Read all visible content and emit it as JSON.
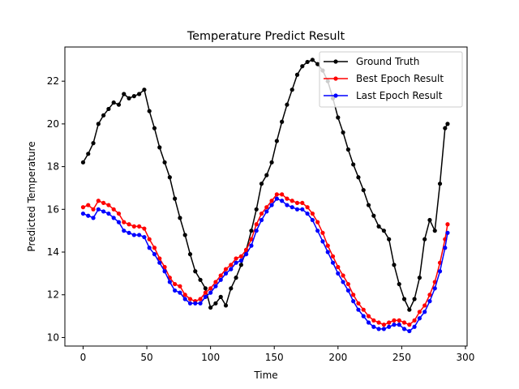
{
  "chart_data": {
    "type": "line",
    "title": "Temperature Predict Result",
    "xlabel": "Time",
    "ylabel": "Predicted Temperature",
    "xlim": [
      -14.3,
      301.3
    ],
    "ylim": [
      9.6,
      23.6
    ],
    "xticks": [
      0,
      50,
      100,
      150,
      200,
      250,
      300
    ],
    "yticks": [
      10,
      12,
      14,
      16,
      18,
      20,
      22
    ],
    "grid": false,
    "legend_position": "top-right",
    "series": [
      {
        "name": "Ground Truth",
        "color": "#000000",
        "x": [
          0,
          4,
          8,
          12,
          16,
          20,
          24,
          28,
          32,
          36,
          40,
          44,
          48,
          52,
          56,
          60,
          64,
          68,
          72,
          76,
          80,
          84,
          88,
          92,
          96,
          100,
          104,
          108,
          112,
          116,
          120,
          124,
          128,
          132,
          136,
          140,
          144,
          148,
          152,
          156,
          160,
          164,
          168,
          172,
          176,
          180,
          184,
          188,
          192,
          196,
          200,
          204,
          208,
          212,
          216,
          220,
          224,
          228,
          232,
          236,
          240,
          244,
          248,
          252,
          256,
          260,
          264,
          268,
          272,
          276,
          280,
          284,
          286
        ],
        "y": [
          18.2,
          18.6,
          19.1,
          20.0,
          20.4,
          20.7,
          21.0,
          20.9,
          21.4,
          21.2,
          21.3,
          21.4,
          21.6,
          20.6,
          19.8,
          18.9,
          18.2,
          17.5,
          16.5,
          15.6,
          14.8,
          13.9,
          13.1,
          12.7,
          12.3,
          11.4,
          11.6,
          11.9,
          11.5,
          12.3,
          12.8,
          13.4,
          14.1,
          15.0,
          16.0,
          17.2,
          17.6,
          18.2,
          19.2,
          20.1,
          20.9,
          21.6,
          22.3,
          22.7,
          22.9,
          23.0,
          22.8,
          22.5,
          22.0,
          21.2,
          20.3,
          19.6,
          18.8,
          18.1,
          17.5,
          16.9,
          16.2,
          15.7,
          15.2,
          15.0,
          14.6,
          13.4,
          12.5,
          11.8,
          11.3,
          11.8,
          12.8,
          14.6,
          15.5,
          15.0,
          17.2,
          19.8,
          20.0
        ]
      },
      {
        "name": "Best Epoch Result",
        "color": "#ff0000",
        "x": [
          0,
          4,
          8,
          12,
          16,
          20,
          24,
          28,
          32,
          36,
          40,
          44,
          48,
          52,
          56,
          60,
          64,
          68,
          72,
          76,
          80,
          84,
          88,
          92,
          96,
          100,
          104,
          108,
          112,
          116,
          120,
          124,
          128,
          132,
          136,
          140,
          144,
          148,
          152,
          156,
          160,
          164,
          168,
          172,
          176,
          180,
          184,
          188,
          192,
          196,
          200,
          204,
          208,
          212,
          216,
          220,
          224,
          228,
          232,
          236,
          240,
          244,
          248,
          252,
          256,
          260,
          264,
          268,
          272,
          276,
          280,
          284,
          286
        ],
        "y": [
          16.1,
          16.2,
          16.0,
          16.4,
          16.3,
          16.2,
          16.0,
          15.8,
          15.4,
          15.3,
          15.2,
          15.2,
          15.1,
          14.6,
          14.2,
          13.7,
          13.3,
          12.8,
          12.5,
          12.4,
          12.0,
          11.8,
          11.7,
          11.8,
          12.1,
          12.3,
          12.6,
          12.9,
          13.2,
          13.4,
          13.7,
          13.8,
          14.1,
          14.6,
          15.3,
          15.8,
          16.1,
          16.4,
          16.7,
          16.7,
          16.5,
          16.4,
          16.3,
          16.3,
          16.1,
          15.8,
          15.4,
          14.9,
          14.3,
          13.8,
          13.3,
          12.9,
          12.5,
          12.0,
          11.6,
          11.3,
          11.0,
          10.8,
          10.7,
          10.6,
          10.7,
          10.8,
          10.8,
          10.7,
          10.6,
          10.8,
          11.2,
          11.5,
          12.0,
          12.6,
          13.5,
          14.6,
          15.3
        ]
      },
      {
        "name": "Last Epoch Result",
        "color": "#0000ff",
        "x": [
          0,
          4,
          8,
          12,
          16,
          20,
          24,
          28,
          32,
          36,
          40,
          44,
          48,
          52,
          56,
          60,
          64,
          68,
          72,
          76,
          80,
          84,
          88,
          92,
          96,
          100,
          104,
          108,
          112,
          116,
          120,
          124,
          128,
          132,
          136,
          140,
          144,
          148,
          152,
          156,
          160,
          164,
          168,
          172,
          176,
          180,
          184,
          188,
          192,
          196,
          200,
          204,
          208,
          212,
          216,
          220,
          224,
          228,
          232,
          236,
          240,
          244,
          248,
          252,
          256,
          260,
          264,
          268,
          272,
          276,
          280,
          284,
          286
        ],
        "y": [
          15.8,
          15.7,
          15.6,
          16.0,
          15.9,
          15.8,
          15.6,
          15.4,
          15.0,
          14.9,
          14.8,
          14.8,
          14.7,
          14.2,
          13.9,
          13.5,
          13.1,
          12.6,
          12.2,
          12.1,
          11.8,
          11.6,
          11.6,
          11.6,
          11.9,
          12.1,
          12.4,
          12.7,
          13.0,
          13.2,
          13.5,
          13.6,
          13.9,
          14.3,
          15.0,
          15.5,
          15.9,
          16.2,
          16.5,
          16.4,
          16.2,
          16.1,
          16.0,
          16.0,
          15.8,
          15.5,
          15.0,
          14.5,
          14.0,
          13.5,
          13.0,
          12.6,
          12.2,
          11.7,
          11.3,
          11.0,
          10.7,
          10.5,
          10.4,
          10.4,
          10.5,
          10.6,
          10.6,
          10.4,
          10.3,
          10.5,
          10.9,
          11.2,
          11.7,
          12.3,
          13.1,
          14.2,
          14.9
        ]
      }
    ]
  }
}
